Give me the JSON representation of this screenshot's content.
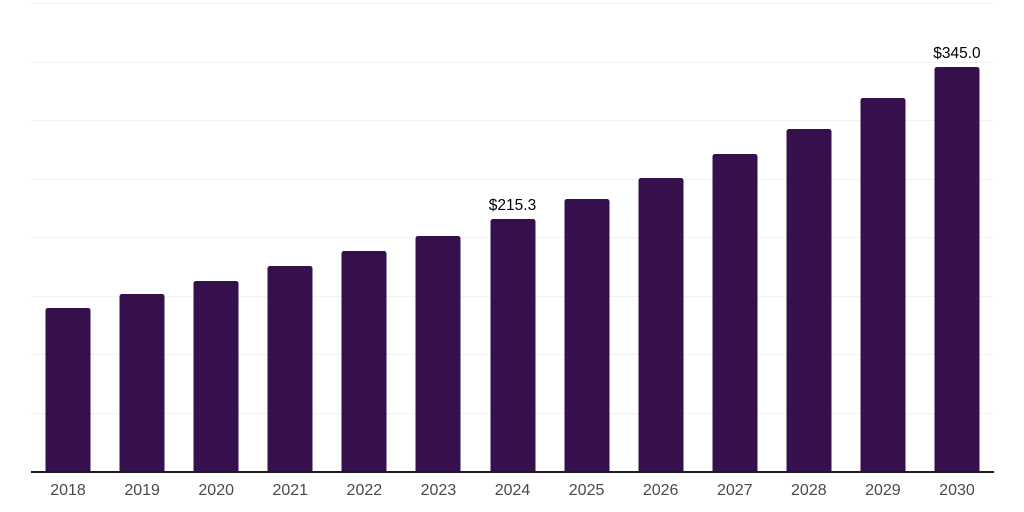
{
  "page": {
    "background": "#ffffff"
  },
  "chart_data": {
    "type": "bar",
    "title": "",
    "xlabel": "",
    "ylabel": "",
    "categories": [
      "2018",
      "2019",
      "2020",
      "2021",
      "2022",
      "2023",
      "2024",
      "2025",
      "2026",
      "2027",
      "2028",
      "2029",
      "2030"
    ],
    "values": [
      139,
      151,
      162,
      175,
      188,
      201,
      215.3,
      232.4,
      250.2,
      270.6,
      292.7,
      319.1,
      345.0
    ],
    "data_labels": {
      "2024": "$215.3",
      "2030": "$345.0"
    },
    "ylim": [
      0,
      400
    ],
    "gridline_interval": 50,
    "grid": true,
    "legend": false,
    "y_axis_labels_visible": false,
    "colors": {
      "bar": "#35104d",
      "axis_line": "#1c1c1c",
      "gridline": "#f2f2f2",
      "tick_label": "#4a4a4a",
      "data_label": "#000000",
      "background": "#ffffff"
    }
  }
}
